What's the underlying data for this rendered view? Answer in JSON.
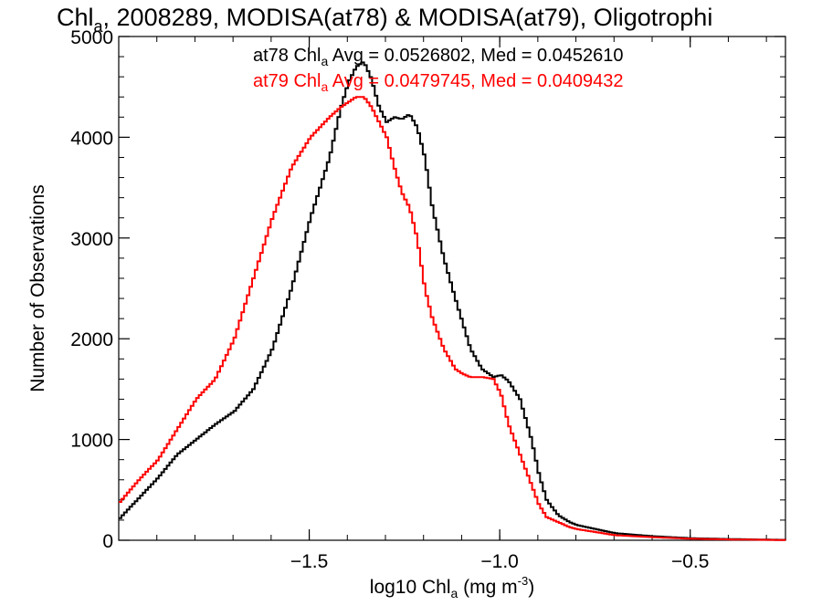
{
  "chart_data": {
    "type": "line",
    "title": {
      "prefix": "Chl",
      "sub": "a",
      "rest": ", 2008289, MODISA(at78) & MODISA(at79), Oligotrophi"
    },
    "xlabel": {
      "prefix": "log10 Chl",
      "sub": "a",
      "mid": " (mg m",
      "sup": "-3",
      "end": ")"
    },
    "ylabel": "Number of Observations",
    "xlim": [
      -2.0,
      -0.25
    ],
    "ylim": [
      0,
      5000
    ],
    "x_ticks": [
      -1.5,
      -1.0,
      -0.5
    ],
    "x_tick_labels": [
      "−1.5",
      "−1.0",
      "−0.5"
    ],
    "y_ticks": [
      0,
      1000,
      2000,
      3000,
      4000,
      5000
    ],
    "y_tick_labels": [
      "0",
      "1000",
      "2000",
      "3000",
      "4000",
      "5000"
    ],
    "grid": false,
    "legend_position": "top",
    "series": [
      {
        "name": "at78",
        "color": "#000000",
        "legend": {
          "prefix": "at78 Chl",
          "sub": "a",
          "rest": " Avg = 0.0526802, Med = 0.0452610"
        },
        "x": [
          -2.0,
          -1.95,
          -1.9,
          -1.85,
          -1.8,
          -1.75,
          -1.7,
          -1.65,
          -1.6,
          -1.55,
          -1.5,
          -1.45,
          -1.42,
          -1.4,
          -1.38,
          -1.36,
          -1.34,
          -1.32,
          -1.3,
          -1.28,
          -1.26,
          -1.24,
          -1.22,
          -1.2,
          -1.18,
          -1.15,
          -1.12,
          -1.1,
          -1.08,
          -1.05,
          -1.02,
          -1.0,
          -0.98,
          -0.95,
          -0.92,
          -0.9,
          -0.88,
          -0.85,
          -0.82,
          -0.8,
          -0.75,
          -0.7,
          -0.6,
          -0.5,
          -0.4,
          -0.3,
          -0.25
        ],
        "y": [
          220,
          420,
          620,
          850,
          1000,
          1150,
          1280,
          1500,
          1900,
          2500,
          3200,
          3800,
          4300,
          4550,
          4700,
          4750,
          4580,
          4300,
          4150,
          4200,
          4180,
          4230,
          4100,
          3800,
          3300,
          2800,
          2400,
          2150,
          1900,
          1700,
          1620,
          1640,
          1580,
          1400,
          1000,
          650,
          400,
          250,
          180,
          150,
          110,
          70,
          40,
          20,
          12,
          6,
          4
        ]
      },
      {
        "name": "at79",
        "color": "#ff0000",
        "legend": {
          "prefix": "at79 Chl",
          "sub": "a",
          "rest": " Avg = 0.0479745, Med = 0.0409432"
        },
        "x": [
          -2.0,
          -1.95,
          -1.9,
          -1.85,
          -1.8,
          -1.75,
          -1.7,
          -1.65,
          -1.6,
          -1.55,
          -1.5,
          -1.45,
          -1.42,
          -1.4,
          -1.38,
          -1.36,
          -1.34,
          -1.32,
          -1.3,
          -1.28,
          -1.26,
          -1.24,
          -1.22,
          -1.2,
          -1.18,
          -1.15,
          -1.12,
          -1.1,
          -1.08,
          -1.05,
          -1.02,
          -1.0,
          -0.98,
          -0.95,
          -0.92,
          -0.9,
          -0.88,
          -0.85,
          -0.82,
          -0.8,
          -0.75,
          -0.7,
          -0.6,
          -0.5,
          -0.4,
          -0.3,
          -0.25
        ],
        "y": [
          380,
          600,
          800,
          1100,
          1400,
          1600,
          2000,
          2600,
          3200,
          3700,
          4000,
          4200,
          4300,
          4350,
          4400,
          4400,
          4300,
          4150,
          4000,
          3700,
          3450,
          3300,
          3000,
          2500,
          2200,
          1900,
          1700,
          1650,
          1620,
          1620,
          1600,
          1450,
          1150,
          850,
          550,
          350,
          230,
          180,
          130,
          110,
          80,
          50,
          30,
          15,
          8,
          4,
          2
        ]
      }
    ]
  }
}
